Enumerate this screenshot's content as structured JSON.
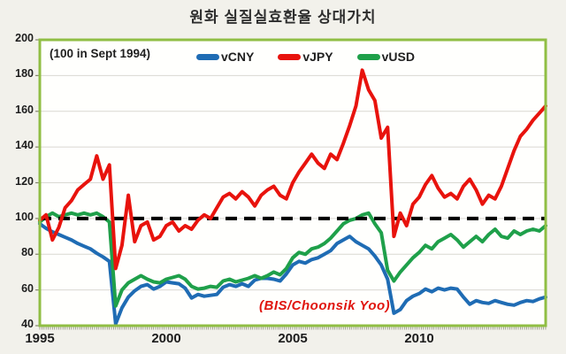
{
  "title": "원화 실질실효환율 상대가치",
  "base_note": "(100 in Sept 1994)",
  "source_note": "(BIS/Choonsik Yoo)",
  "legend": {
    "items": [
      {
        "label": "vCNY",
        "color": "#1F6CB4"
      },
      {
        "label": "vJPY",
        "color": "#E8130D"
      },
      {
        "label": "vUSD",
        "color": "#1FA04A"
      }
    ]
  },
  "colors": {
    "background": "#F2F1EB",
    "plot_bg": "#FFFFFD",
    "plot_border": "#90BE44",
    "gridline": "#D9D8D2",
    "tick": "#83836E",
    "text": "#1C1C1C",
    "reference_line": "#000000",
    "vCNY": "#1F6CB4",
    "vJPY": "#E8130D",
    "vUSD": "#1FA04A",
    "source_text": "#E0140E"
  },
  "chart_data": {
    "type": "line",
    "title": "원화 실질실효환율 상대가치",
    "subtitle": "(100 in Sept 1994)",
    "annotation": "(BIS/Choonsik Yoo)",
    "xlabel": "",
    "ylabel": "",
    "ylim": [
      40,
      200
    ],
    "xlim": [
      1995,
      2015
    ],
    "grid": "horizontal",
    "legend_position": "top-inside",
    "y_ticks": [
      200,
      180,
      160,
      140,
      120,
      100,
      80,
      60,
      40
    ],
    "x_ticks": [
      1995,
      2000,
      2005,
      2010
    ],
    "x_tick_labels": [
      "1995",
      "2000",
      "2005",
      "2010"
    ],
    "minor_x_tick_step_years": 0.08333,
    "reference_line": {
      "value": 100,
      "style": "dashed",
      "color": "#000000",
      "width": 4
    },
    "x": [
      1995,
      1995.25,
      1995.5,
      1995.75,
      1996,
      1996.25,
      1996.5,
      1996.75,
      1997,
      1997.25,
      1997.5,
      1997.75,
      1998,
      1998.25,
      1998.5,
      1998.75,
      1999,
      1999.25,
      1999.5,
      1999.75,
      2000,
      2000.25,
      2000.5,
      2000.75,
      2001,
      2001.25,
      2001.5,
      2001.75,
      2002,
      2002.25,
      2002.5,
      2002.75,
      2003,
      2003.25,
      2003.5,
      2003.75,
      2004,
      2004.25,
      2004.5,
      2004.75,
      2005,
      2005.25,
      2005.5,
      2005.75,
      2006,
      2006.25,
      2006.5,
      2006.75,
      2007,
      2007.25,
      2007.5,
      2007.75,
      2008,
      2008.25,
      2008.5,
      2008.75,
      2009,
      2009.25,
      2009.5,
      2009.75,
      2010,
      2010.25,
      2010.5,
      2010.75,
      2011,
      2011.25,
      2011.5,
      2011.75,
      2012,
      2012.25,
      2012.5,
      2012.75,
      2013,
      2013.25,
      2013.5,
      2013.75,
      2014,
      2014.25,
      2014.5,
      2014.75,
      2015
    ],
    "series": [
      {
        "name": "vCNY",
        "color": "#1F6CB4",
        "values": [
          97,
          94.5,
          92.5,
          91,
          89.5,
          88,
          86,
          84.5,
          83,
          80.5,
          78.5,
          76,
          41,
          50,
          56,
          59.5,
          62,
          63,
          60.5,
          62,
          64.5,
          64,
          63.5,
          61,
          55.5,
          57.5,
          56.5,
          57,
          57.5,
          61.5,
          63,
          62,
          63.5,
          62,
          65.5,
          66.5,
          66.5,
          66,
          65,
          69,
          74,
          76,
          75,
          77,
          78,
          80,
          82,
          86,
          88,
          90,
          87,
          85,
          83,
          79,
          74,
          66,
          47,
          49,
          54,
          56.5,
          58,
          60.5,
          59,
          61,
          60,
          61,
          60.5,
          56,
          52,
          54,
          53,
          52.5,
          54,
          53,
          52,
          51.5,
          53,
          54,
          53.5,
          55,
          56
        ]
      },
      {
        "name": "vJPY",
        "color": "#E8130D",
        "values": [
          99,
          102,
          88,
          95,
          106,
          110,
          116,
          119,
          122,
          135,
          122,
          130,
          72,
          85,
          113,
          87,
          96,
          98,
          88,
          90,
          96,
          98,
          93,
          96,
          94,
          99,
          102,
          100,
          106,
          112,
          114,
          111,
          115,
          112,
          107,
          113,
          116,
          118,
          113,
          111,
          120,
          126,
          131,
          136,
          131,
          128,
          136,
          133,
          142,
          152,
          163,
          183,
          172,
          166,
          145,
          151,
          90,
          103,
          96,
          108,
          112,
          119,
          124,
          117,
          112,
          114,
          111,
          118,
          122,
          116,
          108,
          113,
          111,
          118,
          128,
          138,
          146,
          150,
          155,
          159,
          163
        ]
      },
      {
        "name": "vUSD",
        "color": "#1FA04A",
        "values": [
          98,
          101,
          103,
          101,
          102,
          103,
          102,
          103,
          102,
          103,
          101,
          98,
          51,
          60,
          64,
          66,
          68,
          66,
          64.5,
          64,
          66,
          67,
          68,
          66,
          62,
          60.5,
          61,
          62,
          61.5,
          65,
          66,
          64.5,
          65.5,
          66.5,
          68,
          66.5,
          68,
          70,
          68.5,
          72,
          78,
          81,
          80,
          83,
          84,
          86,
          89,
          93,
          97,
          99,
          100,
          102,
          103,
          97,
          92,
          71,
          65,
          70,
          74,
          78,
          81,
          85,
          83,
          87,
          89,
          91,
          88,
          84,
          87,
          90,
          87,
          91,
          94,
          90,
          89,
          93,
          91,
          93,
          94,
          93,
          96
        ]
      }
    ]
  }
}
